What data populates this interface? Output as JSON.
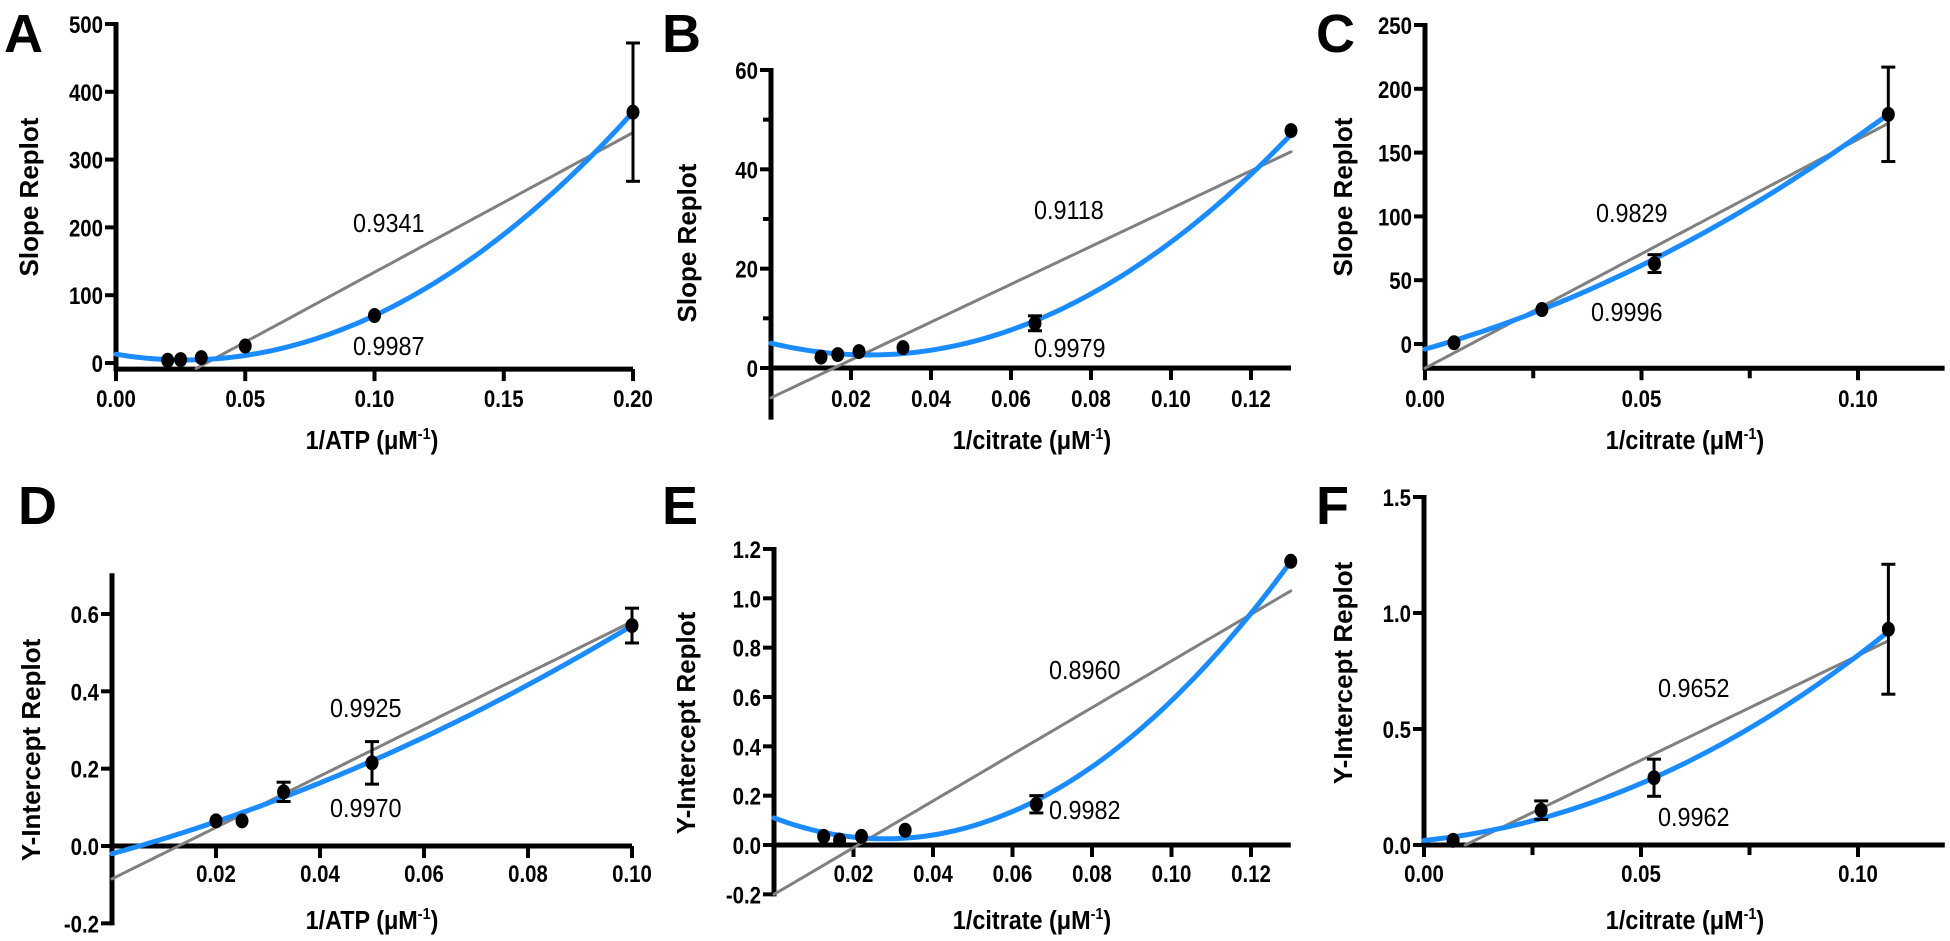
{
  "colors": {
    "quadratic": "#1a8cff",
    "linear": "#808080",
    "points": "#000000",
    "axes": "#000000"
  },
  "chart_data": [
    {
      "type": "scatter",
      "letter": "A",
      "ylabel": "Slope Replot",
      "xlabel": {
        "main": "1/ATP (μM",
        "sup": "-1",
        "end": ")"
      },
      "xlim": [
        0,
        0.2
      ],
      "ylim": [
        -9,
        500
      ],
      "x_axis_crosses_y": -9,
      "x_ticks": [
        {
          "v": 0,
          "label": "0.00"
        },
        {
          "v": 0.05,
          "label": "0.05"
        },
        {
          "v": 0.1,
          "label": "0.10"
        },
        {
          "v": 0.15,
          "label": "0.15"
        },
        {
          "v": 0.2,
          "label": "0.20"
        }
      ],
      "x_minor": [],
      "y_ticks": [
        {
          "v": 0,
          "label": "0"
        },
        {
          "v": 100,
          "label": "100"
        },
        {
          "v": 200,
          "label": "200"
        },
        {
          "v": 300,
          "label": "300"
        },
        {
          "v": 400,
          "label": "400"
        },
        {
          "v": 500,
          "label": "500"
        }
      ],
      "y_minor": [],
      "points": [
        {
          "x": 0.02,
          "y": 4,
          "err": 0
        },
        {
          "x": 0.025,
          "y": 5,
          "err": 0
        },
        {
          "x": 0.033,
          "y": 8,
          "err": 0
        },
        {
          "x": 0.05,
          "y": 25,
          "err": 0
        },
        {
          "x": 0.1,
          "y": 70,
          "err": 0
        },
        {
          "x": 0.2,
          "y": 370,
          "err": 102
        }
      ],
      "fits": {
        "linear": {
          "r2": "0.9341",
          "coeffs": [
            -72,
            2059
          ],
          "range": [
            0.031,
            0.2
          ]
        },
        "quadratic": {
          "r2": "0.9987",
          "coeffs": [
            13,
            -645,
            12150
          ],
          "range": [
            0,
            0.2
          ]
        }
      }
    },
    {
      "type": "scatter",
      "letter": "B",
      "ylabel": "Slope Replot",
      "xlabel": {
        "main": "1/citrate (μM",
        "sup": "-1",
        "end": ")"
      },
      "xlim": [
        0,
        0.13
      ],
      "ylim": [
        -10,
        60
      ],
      "x_axis_crosses_y": 0,
      "x_ticks": [
        {
          "v": 0.02,
          "label": "0.02"
        },
        {
          "v": 0.04,
          "label": "0.04"
        },
        {
          "v": 0.06,
          "label": "0.06"
        },
        {
          "v": 0.08,
          "label": "0.08"
        },
        {
          "v": 0.1,
          "label": "0.10"
        },
        {
          "v": 0.12,
          "label": "0.12"
        }
      ],
      "x_minor": [],
      "y_ticks": [
        {
          "v": 0,
          "label": "0"
        },
        {
          "v": 20,
          "label": "20"
        },
        {
          "v": 40,
          "label": "40"
        },
        {
          "v": 60,
          "label": "60"
        }
      ],
      "y_minor": [
        10,
        30,
        50
      ],
      "points": [
        {
          "x": 0.0125,
          "y": 2.2,
          "err": 0
        },
        {
          "x": 0.0167,
          "y": 2.7,
          "err": 0
        },
        {
          "x": 0.022,
          "y": 3.3,
          "err": 0
        },
        {
          "x": 0.033,
          "y": 4.1,
          "err": 0
        },
        {
          "x": 0.066,
          "y": 9,
          "err": 1.5
        },
        {
          "x": 0.13,
          "y": 47.8,
          "err": 0
        }
      ],
      "fits": {
        "linear": {
          "r2": "0.9118",
          "coeffs": [
            -6,
            381
          ],
          "range": [
            0,
            0.13
          ]
        },
        "quadratic": {
          "r2": "0.9979",
          "coeffs": [
            5,
            -194.7,
            3983
          ],
          "range": [
            0,
            0.13
          ]
        }
      }
    },
    {
      "type": "scatter",
      "letter": "C",
      "ylabel": "Slope Replot",
      "xlabel": {
        "main": "1/citrate (μM",
        "sup": "-1",
        "end": ")"
      },
      "xlim": [
        0,
        0.12
      ],
      "ylim": [
        -19,
        250
      ],
      "x_axis_crosses_y": -19,
      "x_ticks": [
        {
          "v": 0,
          "label": "0.00"
        },
        {
          "v": 0.05,
          "label": "0.05"
        },
        {
          "v": 0.1,
          "label": "0.10"
        }
      ],
      "x_minor": [
        0.025,
        0.075
      ],
      "y_ticks": [
        {
          "v": 0,
          "label": "0"
        },
        {
          "v": 50,
          "label": "50"
        },
        {
          "v": 100,
          "label": "100"
        },
        {
          "v": 150,
          "label": "150"
        },
        {
          "v": 200,
          "label": "200"
        },
        {
          "v": 250,
          "label": "250"
        }
      ],
      "y_minor": [],
      "points": [
        {
          "x": 0.0067,
          "y": 1,
          "err": 0
        },
        {
          "x": 0.027,
          "y": 27,
          "err": 0
        },
        {
          "x": 0.053,
          "y": 63,
          "err": 7
        },
        {
          "x": 0.107,
          "y": 180,
          "err": 37
        }
      ],
      "fits": {
        "linear": {
          "r2": "0.9829",
          "coeffs": [
            -19,
            1794
          ],
          "range": [
            0,
            0.107
          ]
        },
        "quadratic": {
          "r2": "0.9996",
          "coeffs": [
            -4,
            955,
            7150
          ],
          "range": [
            0,
            0.107
          ]
        }
      }
    },
    {
      "type": "scatter",
      "letter": "D",
      "ylabel": "Y-Intercept Replot",
      "xlabel": {
        "main": "1/ATP (μM",
        "sup": "-1",
        "end": ")"
      },
      "xlim": [
        0,
        0.1
      ],
      "ylim": [
        -0.2,
        0.7
      ],
      "x_axis_crosses_y": 0,
      "x_ticks": [
        {
          "v": 0.02,
          "label": "0.02"
        },
        {
          "v": 0.04,
          "label": "0.04"
        },
        {
          "v": 0.06,
          "label": "0.06"
        },
        {
          "v": 0.08,
          "label": "0.08"
        },
        {
          "v": 0.1,
          "label": "0.10"
        }
      ],
      "x_minor": [],
      "y_ticks": [
        {
          "v": -0.2,
          "label": "-0.2"
        },
        {
          "v": 0,
          "label": "0.0"
        },
        {
          "v": 0.2,
          "label": "0.2"
        },
        {
          "v": 0.4,
          "label": "0.4"
        },
        {
          "v": 0.6,
          "label": "0.6"
        }
      ],
      "y_minor": [],
      "points": [
        {
          "x": 0.02,
          "y": 0.065,
          "err": 0
        },
        {
          "x": 0.025,
          "y": 0.065,
          "err": 0
        },
        {
          "x": 0.033,
          "y": 0.14,
          "err": 0.025
        },
        {
          "x": 0.05,
          "y": 0.215,
          "err": 0.055
        },
        {
          "x": 0.1,
          "y": 0.57,
          "err": 0.045
        }
      ],
      "fits": {
        "linear": {
          "r2": "0.9925",
          "coeffs": [
            -0.085,
            6.65
          ],
          "range": [
            0,
            0.1
          ]
        },
        "quadratic": {
          "r2": "0.9970",
          "coeffs": [
            -0.02,
            3.7,
            22
          ],
          "range": [
            0,
            0.1
          ]
        }
      }
    },
    {
      "type": "scatter",
      "letter": "E",
      "ylabel": "Y-Intercept Replot",
      "xlabel": {
        "main": "1/citrate (μM",
        "sup": "-1",
        "end": ")"
      },
      "xlim": [
        0,
        0.13
      ],
      "ylim": [
        -0.2,
        1.2
      ],
      "x_axis_crosses_y": 0,
      "x_ticks": [
        {
          "v": 0.02,
          "label": "0.02"
        },
        {
          "v": 0.04,
          "label": "0.04"
        },
        {
          "v": 0.06,
          "label": "0.06"
        },
        {
          "v": 0.08,
          "label": "0.08"
        },
        {
          "v": 0.1,
          "label": "0.10"
        },
        {
          "v": 0.12,
          "label": "0.12"
        }
      ],
      "x_minor": [],
      "y_ticks": [
        {
          "v": -0.2,
          "label": "-0.2"
        },
        {
          "v": 0,
          "label": "0.0"
        },
        {
          "v": 0.2,
          "label": "0.2"
        },
        {
          "v": 0.4,
          "label": "0.4"
        },
        {
          "v": 0.6,
          "label": "0.6"
        },
        {
          "v": 0.8,
          "label": "0.8"
        },
        {
          "v": 1.0,
          "label": "1.0"
        },
        {
          "v": 1.2,
          "label": "1.2"
        }
      ],
      "y_minor": [],
      "points": [
        {
          "x": 0.0125,
          "y": 0.035,
          "err": 0
        },
        {
          "x": 0.0165,
          "y": 0.02,
          "err": 0
        },
        {
          "x": 0.022,
          "y": 0.035,
          "err": 0
        },
        {
          "x": 0.033,
          "y": 0.06,
          "err": 0
        },
        {
          "x": 0.066,
          "y": 0.165,
          "err": 0.035
        },
        {
          "x": 0.13,
          "y": 1.15,
          "err": 0
        }
      ],
      "fits": {
        "linear": {
          "r2": "0.8960",
          "coeffs": [
            -0.2,
            9.46
          ],
          "range": [
            0,
            0.13
          ]
        },
        "quadratic": {
          "r2": "0.9982",
          "coeffs": [
            0.1097,
            -6.048,
            108
          ],
          "range": [
            0,
            0.13
          ]
        }
      }
    },
    {
      "type": "scatter",
      "letter": "F",
      "ylabel": "Y-Intercept Replot",
      "xlabel": {
        "main": "1/citrate (μM",
        "sup": "-1",
        "end": ")"
      },
      "xlim": [
        0,
        0.12
      ],
      "ylim": [
        0,
        1.5
      ],
      "x_axis_crosses_y": 0,
      "x_ticks": [
        {
          "v": 0,
          "label": "0.00"
        },
        {
          "v": 0.05,
          "label": "0.05"
        },
        {
          "v": 0.1,
          "label": "0.10"
        }
      ],
      "x_minor": [
        0.025,
        0.075
      ],
      "y_ticks": [
        {
          "v": 0,
          "label": "0.0"
        },
        {
          "v": 0.5,
          "label": "0.5"
        },
        {
          "v": 1.0,
          "label": "1.0"
        },
        {
          "v": 1.5,
          "label": "1.5"
        }
      ],
      "y_minor": [],
      "points": [
        {
          "x": 0.0067,
          "y": 0.02,
          "err": 0
        },
        {
          "x": 0.027,
          "y": 0.15,
          "err": 0.04
        },
        {
          "x": 0.053,
          "y": 0.29,
          "err": 0.08
        },
        {
          "x": 0.107,
          "y": 0.93,
          "err": 0.28
        }
      ],
      "fits": {
        "linear": {
          "r2": "0.9652",
          "coeffs": [
            -0.086,
            9.03
          ],
          "range": [
            0.0095,
            0.107
          ]
        },
        "quadratic": {
          "r2": "0.9962",
          "coeffs": [
            0.02,
            1.84,
            61.4
          ],
          "range": [
            0,
            0.107
          ]
        }
      }
    }
  ]
}
